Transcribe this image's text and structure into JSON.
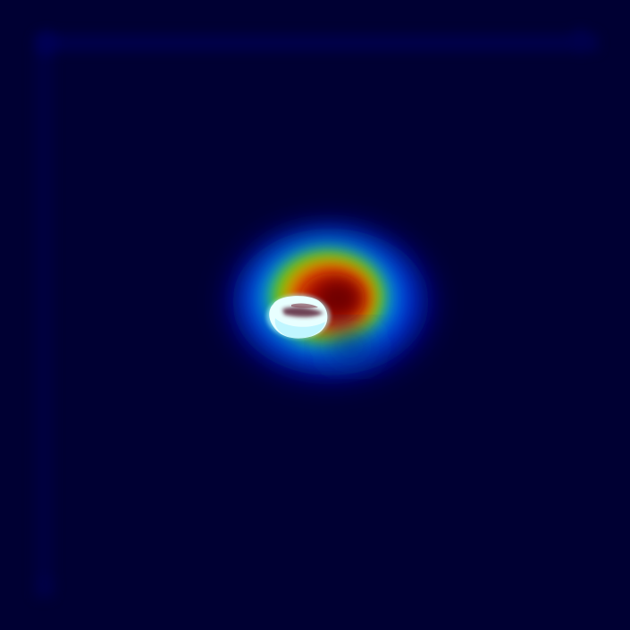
{
  "image": {
    "kind": "attention-heatmap-overlay",
    "colormap": "jet",
    "background_color": "#000033",
    "heatmap_colors": {
      "low": "#00007f",
      "mid_low": "#0033ff",
      "mid": "#00ffcc",
      "mid_high": "#ffff00",
      "high": "#ff2a00",
      "peak": "#7f0000"
    },
    "object_colors": {
      "highlight": "#eaffff",
      "shadow": "#4a1a2a"
    }
  }
}
